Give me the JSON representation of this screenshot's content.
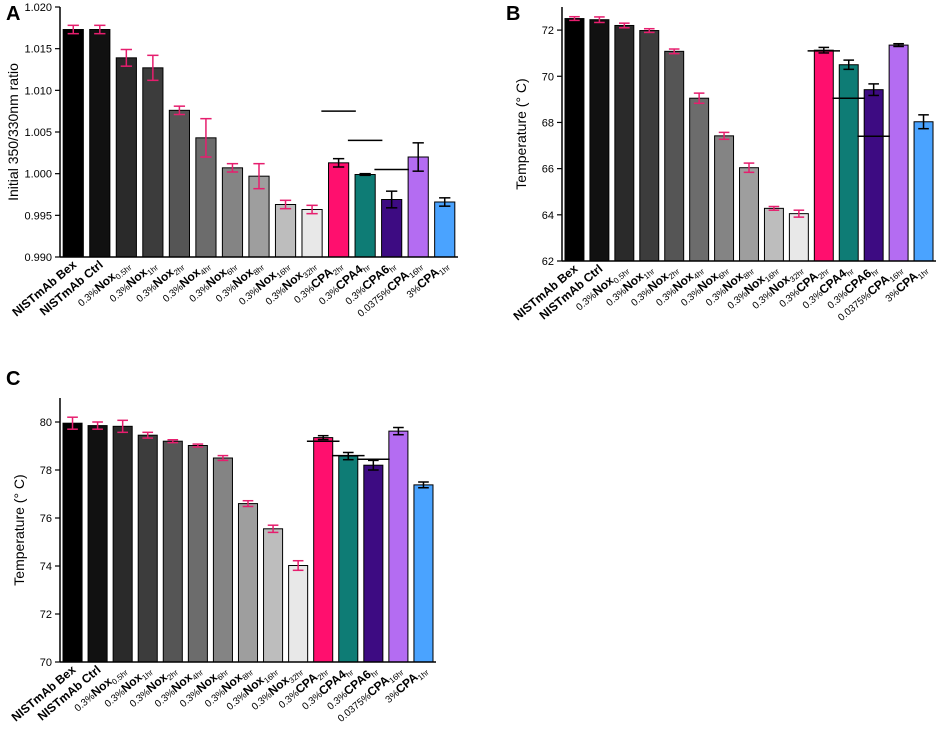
{
  "figure": {
    "colors": {
      "bex": "#000000",
      "ctrl": "#111111",
      "nox05": "#2a2a2a",
      "nox1": "#3c3c3c",
      "nox2": "#555555",
      "nox4": "#6c6c6c",
      "nox6": "#848484",
      "nox8": "#9e9e9e",
      "nox16": "#bdbdbd",
      "nox32": "#e8e8e8",
      "cpa2": "#ff0f6e",
      "cpa4": "#0e7c75",
      "cpa6": "#3d0b82",
      "cpa16": "#b46cf2",
      "cpa1": "#4aa3ff",
      "errorbar_grey": "#e61e6e",
      "errorbar_color": "#000000"
    },
    "category_labels": [
      {
        "pct": "",
        "main": "NISTmAb Bex",
        "sub": ""
      },
      {
        "pct": "",
        "main": "NISTmAb Ctrl",
        "sub": ""
      },
      {
        "pct": "0.3%",
        "main": "Nox",
        "sub": "0.5hr"
      },
      {
        "pct": "0.3%",
        "main": "Nox",
        "sub": "1hr"
      },
      {
        "pct": "0.3%",
        "main": "Nox",
        "sub": "2hr"
      },
      {
        "pct": "0.3%",
        "main": "Nox",
        "sub": "4hr"
      },
      {
        "pct": "0.3%",
        "main": "Nox",
        "sub": "6hr"
      },
      {
        "pct": "0.3%",
        "main": "Nox",
        "sub": "8hr"
      },
      {
        "pct": "0.3%",
        "main": "Nox",
        "sub": "16hr"
      },
      {
        "pct": "0.3%",
        "main": "Nox",
        "sub": "32hr"
      },
      {
        "pct": "0.3%",
        "main": "CPA",
        "sub": "2hr"
      },
      {
        "pct": "0.3%",
        "main": "CPA4",
        "sub": "hr"
      },
      {
        "pct": "0.3%",
        "main": "CPA6",
        "sub": "hr"
      },
      {
        "pct": "0.0375%",
        "main": "CPA",
        "sub": "16hr"
      },
      {
        "pct": "3%",
        "main": "CPA",
        "sub": "1hr"
      }
    ]
  },
  "chart_data": [
    {
      "panel": "A",
      "type": "bar",
      "title": "",
      "ylabel": "Initial 350/330nm ratio",
      "xlabel": "",
      "ylim": [
        0.99,
        1.02
      ],
      "yticks": [
        "0.990",
        "0.995",
        "1.000",
        "1.005",
        "1.010",
        "1.015",
        "1.020"
      ],
      "ytick_values": [
        0.99,
        0.995,
        1.0,
        1.005,
        1.01,
        1.015,
        1.02
      ],
      "categories": [
        "NISTmAb Bex",
        "NISTmAb Ctrl",
        "0.3% Nox 0.5hr",
        "0.3% Nox 1hr",
        "0.3% Nox 2hr",
        "0.3% Nox 4hr",
        "0.3% Nox 6hr",
        "0.3% Nox 8hr",
        "0.3% Nox 16hr",
        "0.3% Nox 32hr",
        "0.3% CPA 2hr",
        "0.3% CPA4 hr",
        "0.3% CPA6 hr",
        "0.0375% CPA 16hr",
        "3% CPA 1hr"
      ],
      "values": [
        1.0173,
        1.0173,
        1.0139,
        1.0127,
        1.0076,
        1.0043,
        1.0007,
        0.9997,
        0.9963,
        0.9957,
        1.0013,
        0.9999,
        0.9969,
        1.002,
        0.9966
      ],
      "errors": [
        0.0005,
        0.0005,
        0.001,
        0.0015,
        0.0005,
        0.0023,
        0.0005,
        0.0015,
        0.0005,
        0.0005,
        0.0005,
        0.0001,
        0.001,
        0.0017,
        0.0005
      ],
      "reference_lines": [
        {
          "from": 10,
          "to": 10,
          "value": 1.0075
        },
        {
          "from": 11,
          "to": 11,
          "value": 1.004
        },
        {
          "from": 12,
          "to": 12,
          "value": 1.0005
        }
      ]
    },
    {
      "panel": "B",
      "type": "bar",
      "title": "",
      "ylabel": "Temperature (° C)",
      "xlabel": "",
      "ylim": [
        62,
        73
      ],
      "yticks": [
        "62",
        "64",
        "66",
        "68",
        "70",
        "72"
      ],
      "ytick_values": [
        62,
        64,
        66,
        68,
        70,
        72
      ],
      "categories": [
        "NISTmAb Bex",
        "NISTmAb Ctrl",
        "0.3% Nox 0.5hr",
        "0.3% Nox 1hr",
        "0.3% Nox 2hr",
        "0.3% Nox 4hr",
        "0.3% Nox 6hr",
        "0.3% Nox 8hr",
        "0.3% Nox 16hr",
        "0.3% Nox 32hr",
        "0.3% CPA 2hr",
        "0.3% CPA4 hr",
        "0.3% CPA6 hr",
        "0.0375% CPA 16hr",
        "3% CPA 1hr"
      ],
      "values": [
        72.5,
        72.45,
        72.2,
        71.98,
        71.08,
        69.05,
        67.42,
        66.04,
        64.28,
        64.05,
        71.13,
        70.5,
        69.42,
        71.35,
        68.03
      ],
      "errors": [
        0.08,
        0.12,
        0.1,
        0.08,
        0.1,
        0.22,
        0.15,
        0.2,
        0.08,
        0.15,
        0.12,
        0.2,
        0.25,
        0.06,
        0.3
      ],
      "reference_lines": [
        {
          "from": 10,
          "to": 10,
          "value": 71.1
        },
        {
          "from": 11,
          "to": 11,
          "value": 69.05
        },
        {
          "from": 12,
          "to": 12,
          "value": 67.4
        }
      ]
    },
    {
      "panel": "C",
      "type": "bar",
      "title": "",
      "ylabel": "Temperature (° C)",
      "xlabel": "",
      "ylim": [
        70,
        81
      ],
      "yticks": [
        "70",
        "72",
        "74",
        "76",
        "78",
        "80"
      ],
      "ytick_values": [
        70,
        72,
        74,
        76,
        78,
        80
      ],
      "categories": [
        "NISTmAb Bex",
        "NISTmAb Ctrl",
        "0.3% Nox 0.5hr",
        "0.3% Nox 1hr",
        "0.3% Nox 2hr",
        "0.3% Nox 4hr",
        "0.3% Nox 6hr",
        "0.3% Nox 8hr",
        "0.3% Nox 16hr",
        "0.3% Nox 32hr",
        "0.3% CPA 2hr",
        "0.3% CPA4 hr",
        "0.3% CPA6 hr",
        "0.0375% CPA 16hr",
        "3% CPA 1hr"
      ],
      "values": [
        79.95,
        79.85,
        79.82,
        79.45,
        79.2,
        79.02,
        78.5,
        76.6,
        75.55,
        74.02,
        79.35,
        78.58,
        78.2,
        79.62,
        77.38
      ],
      "errors": [
        0.25,
        0.15,
        0.25,
        0.12,
        0.06,
        0.06,
        0.1,
        0.12,
        0.15,
        0.2,
        0.08,
        0.15,
        0.2,
        0.15,
        0.12
      ],
      "reference_lines": [
        {
          "from": 10,
          "to": 10,
          "value": 79.2
        },
        {
          "from": 11,
          "to": 11,
          "value": 78.6
        },
        {
          "from": 12,
          "to": 12,
          "value": 78.45
        }
      ]
    }
  ]
}
